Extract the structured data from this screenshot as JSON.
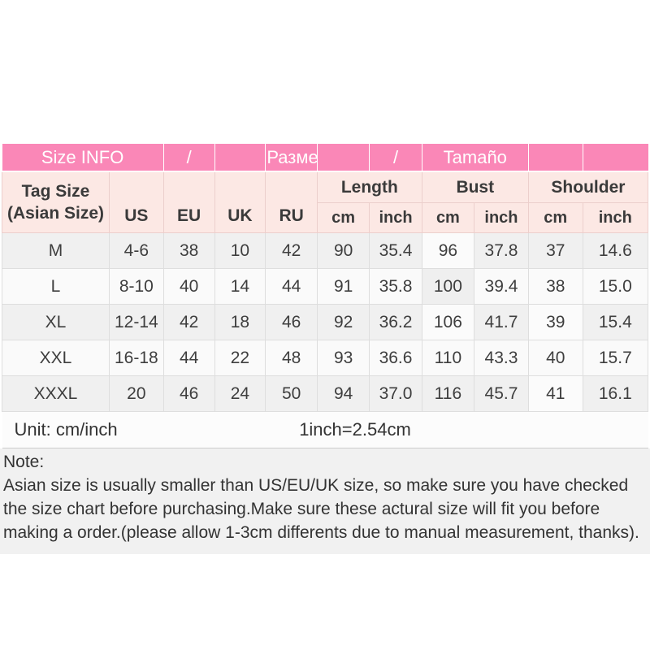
{
  "header": {
    "title_en": "Size INFO",
    "separator1": "/",
    "title_ru": "Размер",
    "separator2": "/",
    "title_es": "Tamaño"
  },
  "columns": {
    "tag_size_line1": "Tag Size",
    "tag_size_line2": "(Asian Size)",
    "us": "US",
    "eu": "EU",
    "uk": "UK",
    "ru": "RU",
    "length": "Length",
    "bust": "Bust",
    "shoulder": "Shoulder",
    "cm": "cm",
    "inch": "inch"
  },
  "rows": [
    {
      "tag": "M",
      "us": "4-6",
      "eu": "38",
      "uk": "10",
      "ru": "42",
      "length_cm": "90",
      "length_inch": "35.4",
      "bust_cm": "96",
      "bust_inch": "37.8",
      "shoulder_cm": "37",
      "shoulder_inch": "14.6"
    },
    {
      "tag": "L",
      "us": "8-10",
      "eu": "40",
      "uk": "14",
      "ru": "44",
      "length_cm": "91",
      "length_inch": "35.8",
      "bust_cm": "100",
      "bust_inch": "39.4",
      "shoulder_cm": "38",
      "shoulder_inch": "15.0"
    },
    {
      "tag": "XL",
      "us": "12-14",
      "eu": "42",
      "uk": "18",
      "ru": "46",
      "length_cm": "92",
      "length_inch": "36.2",
      "bust_cm": "106",
      "bust_inch": "41.7",
      "shoulder_cm": "39",
      "shoulder_inch": "15.4"
    },
    {
      "tag": "XXL",
      "us": "16-18",
      "eu": "44",
      "uk": "22",
      "ru": "48",
      "length_cm": "93",
      "length_inch": "36.6",
      "bust_cm": "110",
      "bust_inch": "43.3",
      "shoulder_cm": "40",
      "shoulder_inch": "15.7"
    },
    {
      "tag": "XXXL",
      "us": "20",
      "eu": "46",
      "uk": "24",
      "ru": "50",
      "length_cm": "94",
      "length_inch": "37.0",
      "bust_cm": "116",
      "bust_inch": "45.7",
      "shoulder_cm": "41",
      "shoulder_inch": "16.1"
    }
  ],
  "footer": {
    "unit_label": "Unit: cm/inch",
    "conversion": "1inch=2.54cm"
  },
  "note": {
    "label": "Note:",
    "text": "Asian size is usually smaller than US/EU/UK size, so make sure you have checked the size chart before purchasing.Make sure these actural size will fit you before making a order.(please allow 1-3cm differents due to manual measurement, thanks)."
  },
  "colors": {
    "header_pink": "#fa87b7",
    "light_pink": "#fce8e4",
    "row_gray": "#f0f0f0",
    "row_white": "#fafafa",
    "text": "#3e3e3e"
  }
}
